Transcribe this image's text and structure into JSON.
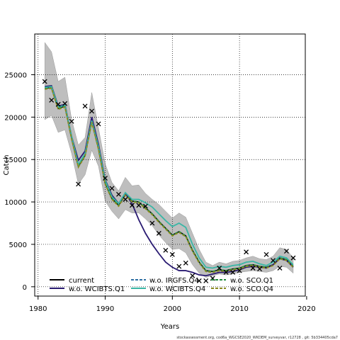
{
  "chart_data": {
    "type": "line",
    "title": "",
    "xlabel": "Years",
    "ylabel": "Catch",
    "xlim": [
      1979.5,
      2019.8
    ],
    "ylim": [
      -1100,
      29800
    ],
    "xticks": [
      1980,
      1990,
      2000,
      2010,
      2020
    ],
    "yticks": [
      0,
      5000,
      10000,
      15000,
      20000,
      25000
    ],
    "grid": true,
    "grid_style": "dotted",
    "legend_placement": "bottom",
    "caption": "stockassessment.org, cod6a_WGCSE2020_WKDEM_surveyvar, r12728 , git: 5b334405cda7",
    "x": [
      1981,
      1982,
      1983,
      1984,
      1985,
      1986,
      1987,
      1988,
      1989,
      1990,
      1991,
      1992,
      1993,
      1994,
      1995,
      1996,
      1997,
      1998,
      1999,
      2000,
      2001,
      2002,
      2003,
      2004,
      2005,
      2006,
      2007,
      2008,
      2009,
      2010,
      2011,
      2012,
      2013,
      2014,
      2015,
      2016,
      2017,
      2018
    ],
    "band": {
      "name": "confidence interval",
      "color": "#bebebe",
      "upper": [
        28800,
        27700,
        24200,
        24700,
        19700,
        16700,
        17600,
        22900,
        18700,
        14500,
        12300,
        11300,
        12900,
        11900,
        12000,
        11000,
        10300,
        9700,
        8900,
        8100,
        8700,
        8200,
        6300,
        4400,
        2900,
        2500,
        2900,
        2700,
        3000,
        3100,
        3400,
        3600,
        3300,
        3200,
        3600,
        4600,
        4400,
        3400
      ],
      "lower": [
        19700,
        20200,
        18200,
        18500,
        15700,
        12100,
        13200,
        16100,
        14200,
        10100,
        8900,
        8000,
        9100,
        8700,
        8700,
        8000,
        7200,
        6100,
        5200,
        4400,
        4500,
        4000,
        2600,
        1600,
        1100,
        1300,
        1500,
        1400,
        1500,
        1700,
        1800,
        1900,
        1800,
        1700,
        1900,
        2400,
        2300,
        1600
      ]
    },
    "series": [
      {
        "name": "current",
        "color": "#000000",
        "dash": "solid",
        "values": [
          23400,
          23500,
          21000,
          21300,
          17500,
          14200,
          15500,
          19500,
          16300,
          12200,
          10400,
          9600,
          10900,
          10100,
          10000,
          9300,
          8600,
          7700,
          6900,
          6100,
          6500,
          6000,
          4300,
          2900,
          1900,
          1800,
          2000,
          1900,
          2100,
          2200,
          2500,
          2600,
          2400,
          2300,
          2600,
          3400,
          3200,
          2400
        ]
      },
      {
        "name": "w.o. IRGFS.Q4",
        "color": "#2e6fa3",
        "dash": "dashed",
        "values": [
          23400,
          23500,
          21000,
          21300,
          17500,
          14200,
          15500,
          19500,
          16300,
          12200,
          10400,
          9600,
          10900,
          10100,
          10000,
          9300,
          8600,
          7700,
          6900,
          6100,
          6500,
          6000,
          4300,
          2900,
          1900,
          1800,
          2000,
          1900,
          2100,
          2200,
          2500,
          2600,
          2400,
          2300,
          2600,
          3400,
          3200,
          2400
        ]
      },
      {
        "name": "w.o. SCO.Q1",
        "color": "#1f8a3c",
        "dash": "dashed",
        "values": [
          23400,
          23500,
          21000,
          21300,
          17500,
          14200,
          15500,
          19500,
          16300,
          12200,
          10400,
          9600,
          10900,
          10100,
          10000,
          9300,
          8600,
          7700,
          6900,
          6100,
          6500,
          6000,
          4300,
          2900,
          1900,
          1800,
          2000,
          1900,
          2100,
          2200,
          2500,
          2600,
          2400,
          2300,
          2600,
          3400,
          3200,
          2400
        ]
      },
      {
        "name": "w.o. WCIBTS.Q1",
        "color": "#2a1b72",
        "dash": "solid",
        "values": [
          23600,
          23700,
          21300,
          21500,
          17700,
          14900,
          16000,
          20000,
          16800,
          12600,
          10800,
          9800,
          11000,
          9800,
          7900,
          6300,
          5000,
          3900,
          2900,
          2300,
          1900,
          1900,
          1700,
          1400,
          1300,
          1500,
          1700,
          1700,
          1800,
          2000,
          2300,
          2400,
          2300,
          2200,
          2600,
          3300,
          3100,
          2300
        ]
      },
      {
        "name": "w.o. WCIBTS.Q4",
        "color": "#3ab7a6",
        "dash": "solid",
        "values": [
          23500,
          23600,
          21200,
          21400,
          17700,
          14400,
          15700,
          19600,
          16500,
          12500,
          10600,
          9800,
          11100,
          10300,
          10300,
          9900,
          9400,
          8600,
          7800,
          7100,
          7500,
          7000,
          5000,
          3400,
          2300,
          2200,
          2400,
          2300,
          2500,
          2600,
          2900,
          3000,
          2700,
          2500,
          2900,
          3600,
          3400,
          2600
        ]
      },
      {
        "name": "w.o. SCO.Q4",
        "color": "#8a8a1e",
        "dash": "dashed",
        "values": [
          23300,
          23400,
          20900,
          21200,
          17400,
          14100,
          15400,
          19400,
          16200,
          12100,
          10300,
          9500,
          10800,
          10000,
          9900,
          9200,
          8500,
          7600,
          6800,
          6000,
          6400,
          5900,
          4200,
          2800,
          1800,
          1700,
          1900,
          1800,
          2000,
          2100,
          2400,
          2500,
          2300,
          2200,
          2500,
          3300,
          3100,
          2300
        ]
      }
    ],
    "observed": {
      "name": "observed catch",
      "marker": "x",
      "x": [
        1981,
        1982,
        1983,
        1984,
        1985,
        1986,
        1987,
        1988,
        1989,
        1990,
        1991,
        1992,
        1993,
        1994,
        1995,
        1996,
        1997,
        1998,
        1999,
        2000,
        2001,
        2002,
        2003,
        2004,
        2005,
        2006,
        2007,
        2008,
        2009,
        2010,
        2011,
        2012,
        2013,
        2014,
        2015,
        2016,
        2017,
        2018
      ],
      "y": [
        24200,
        22000,
        21500,
        21600,
        19500,
        12100,
        21300,
        20700,
        19200,
        12800,
        11600,
        10900,
        10300,
        9600,
        9600,
        9500,
        7500,
        6300,
        4300,
        3800,
        2400,
        2800,
        1300,
        700,
        700,
        1000,
        2200,
        1700,
        1700,
        1900,
        4100,
        2200,
        2100,
        3800,
        3100,
        2200,
        4200,
        3400
      ]
    }
  }
}
